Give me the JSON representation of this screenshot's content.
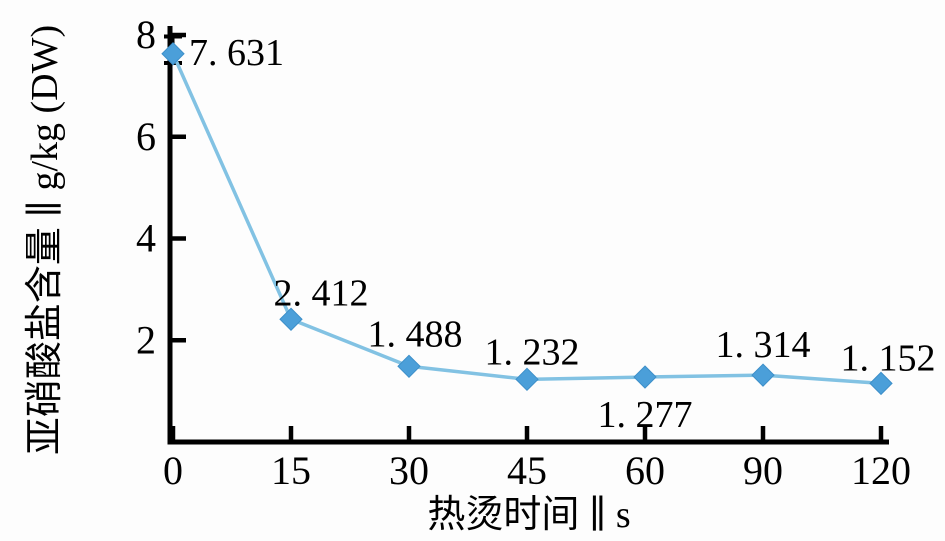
{
  "chart_data": {
    "type": "line",
    "title": "",
    "series_name": "亚硝酸盐含量",
    "categories": [
      "0",
      "15",
      "30",
      "45",
      "60",
      "90",
      "120"
    ],
    "values": [
      7.631,
      2.412,
      1.488,
      1.232,
      1.277,
      1.314,
      1.152
    ],
    "point_labels": [
      "7. 631",
      "2. 412",
      "1. 488",
      "1. 232",
      "1. 277",
      "1. 314",
      "1. 152"
    ],
    "label_positions": [
      "right",
      "above",
      "above",
      "above",
      "below",
      "above",
      "above"
    ],
    "xlabel": "热烫时间 ∥ s",
    "ylabel": "亚硝酸盐含量 ∥ g/kg (DW)",
    "xlim_categories_evenly_spaced": true,
    "ylim": [
      0,
      8
    ],
    "yticks": [
      2,
      4,
      6,
      8
    ],
    "error_bar": {
      "index": 0,
      "low": 7.45,
      "high": 7.97
    },
    "grid": false,
    "legend": null,
    "marker_shape": "diamond",
    "colors": {
      "line": "#82c2e3",
      "marker": "#4b9fd9",
      "marker_edge": "#3d8fc9",
      "axis": "#000000",
      "text": "#000000",
      "background": "#fdfdfd"
    }
  }
}
